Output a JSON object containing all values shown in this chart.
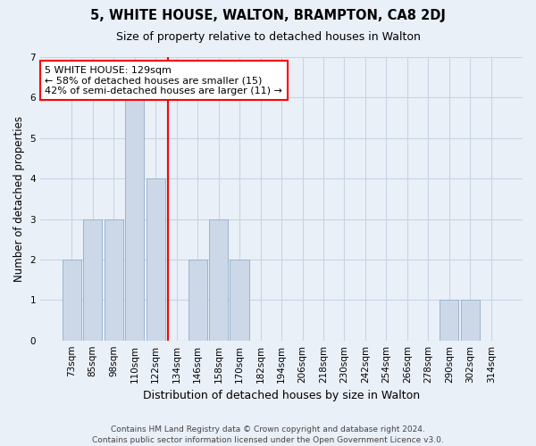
{
  "title": "5, WHITE HOUSE, WALTON, BRAMPTON, CA8 2DJ",
  "subtitle": "Size of property relative to detached houses in Walton",
  "xlabel": "Distribution of detached houses by size in Walton",
  "ylabel": "Number of detached properties",
  "bin_labels": [
    "73sqm",
    "85sqm",
    "98sqm",
    "110sqm",
    "122sqm",
    "134sqm",
    "146sqm",
    "158sqm",
    "170sqm",
    "182sqm",
    "194sqm",
    "206sqm",
    "218sqm",
    "230sqm",
    "242sqm",
    "254sqm",
    "266sqm",
    "278sqm",
    "290sqm",
    "302sqm",
    "314sqm"
  ],
  "bar_values": [
    2,
    3,
    3,
    6,
    4,
    0,
    2,
    3,
    2,
    0,
    0,
    0,
    0,
    0,
    0,
    0,
    0,
    0,
    1,
    1,
    0
  ],
  "bar_color": "#ccd8e8",
  "bar_edge_color": "#9ab4cc",
  "annotation_text": "5 WHITE HOUSE: 129sqm\n← 58% of detached houses are smaller (15)\n42% of semi-detached houses are larger (11) →",
  "annotation_box_color": "white",
  "annotation_box_edge_color": "red",
  "vline_color": "red",
  "ylim": [
    0,
    7
  ],
  "yticks": [
    0,
    1,
    2,
    3,
    4,
    5,
    6,
    7
  ],
  "footer": "Contains HM Land Registry data © Crown copyright and database right 2024.\nContains public sector information licensed under the Open Government Licence v3.0.",
  "bg_color": "#eaf0f8",
  "plot_bg_color": "#eaf0f8",
  "vline_xindex": 4.58
}
